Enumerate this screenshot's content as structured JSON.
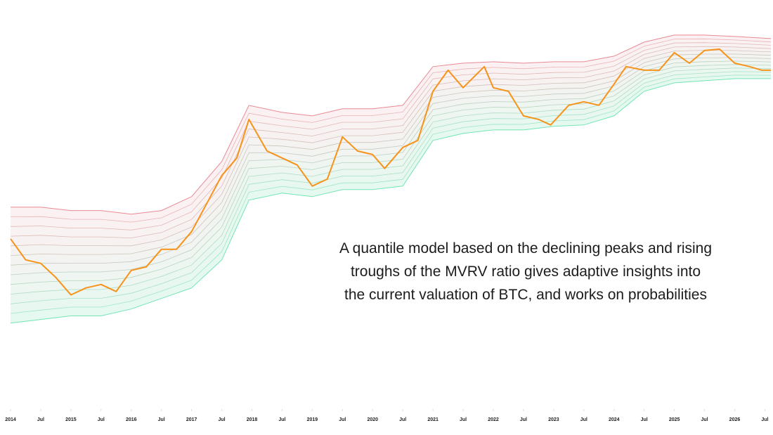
{
  "chart_data": {
    "type": "line",
    "log_scale": true,
    "ylim": [
      14,
      377000
    ],
    "xlim": [
      2014,
      2026.6
    ],
    "xticks": [
      {
        "value": 2014,
        "label": "2014"
      },
      {
        "value": 2014.5,
        "label": "Jul"
      },
      {
        "value": 2015,
        "label": "2015"
      },
      {
        "value": 2015.5,
        "label": "Jul"
      },
      {
        "value": 2016,
        "label": "2016"
      },
      {
        "value": 2016.5,
        "label": "Jul"
      },
      {
        "value": 2017,
        "label": "2017"
      },
      {
        "value": 2017.5,
        "label": "Jul"
      },
      {
        "value": 2018,
        "label": "2018"
      },
      {
        "value": 2018.5,
        "label": "Jul"
      },
      {
        "value": 2019,
        "label": "2019"
      },
      {
        "value": 2019.5,
        "label": "Jul"
      },
      {
        "value": 2020,
        "label": "2020"
      },
      {
        "value": 2020.5,
        "label": "Jul"
      },
      {
        "value": 2021,
        "label": "2021"
      },
      {
        "value": 2021.5,
        "label": "Jul"
      },
      {
        "value": 2022,
        "label": "2022"
      },
      {
        "value": 2022.5,
        "label": "Jul"
      },
      {
        "value": 2023,
        "label": "2023"
      },
      {
        "value": 2023.5,
        "label": "Jul"
      },
      {
        "value": 2024,
        "label": "2024"
      },
      {
        "value": 2024.5,
        "label": "Jul"
      },
      {
        "value": 2025,
        "label": "2025"
      },
      {
        "value": 2025.5,
        "label": "Jul"
      },
      {
        "value": 2026,
        "label": "2026"
      },
      {
        "value": 2026.5,
        "label": "Jul"
      }
    ],
    "x": [
      2014,
      2014.25,
      2014.5,
      2014.75,
      2015,
      2015.25,
      2015.5,
      2015.75,
      2016,
      2016.25,
      2016.5,
      2016.75,
      2017,
      2017.25,
      2017.5,
      2017.75,
      2017.95,
      2018.25,
      2018.5,
      2018.75,
      2019,
      2019.25,
      2019.5,
      2019.75,
      2020,
      2020.2,
      2020.5,
      2020.75,
      2021,
      2021.25,
      2021.5,
      2021.85,
      2022,
      2022.25,
      2022.5,
      2022.75,
      2022.95,
      2023.25,
      2023.5,
      2023.75,
      2024,
      2024.2,
      2024.5,
      2024.75,
      2025,
      2025.25,
      2025.5,
      2025.75,
      2026,
      2026.25,
      2026.45,
      2026.6
    ],
    "values": [
      957,
      565,
      518,
      364,
      235,
      280,
      305,
      256,
      434,
      474,
      736,
      736,
      1143,
      2307,
      4656,
      7228,
      19000,
      8610,
      7228,
      6067,
      3581,
      4266,
      12250,
      8610,
      7889,
      5560,
      9414,
      11220,
      38370,
      65030,
      41980,
      71120,
      41980,
      38370,
      20750,
      19000,
      16520,
      27040,
      29510,
      27040,
      45810,
      71120,
      65030,
      65030,
      100900,
      77620,
      106400,
      110200,
      77620,
      71120,
      65030,
      65030
    ],
    "color": "#f7931a",
    "band_x": [
      2014,
      2014.5,
      2015,
      2015.5,
      2016,
      2016.5,
      2017,
      2017.5,
      2017.95,
      2018.5,
      2019,
      2019.5,
      2020,
      2020.5,
      2021,
      2021.5,
      2022,
      2022.5,
      2023,
      2023.5,
      2024,
      2024.5,
      2025,
      2025.5,
      2026,
      2026.6
    ],
    "band_upper": [
      2110,
      2110,
      1940,
      1940,
      1770,
      1940,
      2750,
      6620,
      27000,
      22650,
      20750,
      24770,
      24770,
      27000,
      71100,
      77600,
      80400,
      77600,
      80400,
      80400,
      92500,
      131500,
      156700,
      156700,
      151400,
      143500
    ],
    "band_lower": [
      116,
      127,
      139,
      139,
      165,
      215,
      280,
      565,
      2518,
      3000,
      2750,
      3280,
      3280,
      3581,
      11220,
      13370,
      14590,
      14590,
      15960,
      16520,
      20750,
      38370,
      47420,
      50000,
      52700,
      52700
    ],
    "band_colors": [
      "#3ddc97",
      "#e05a6a"
    ],
    "annotation": [
      "A quantile model based on the declining peaks and rising",
      "troughs of the MVRV ratio gives adaptive insights into",
      "the current valuation of BTC, and works on probabilities"
    ]
  }
}
